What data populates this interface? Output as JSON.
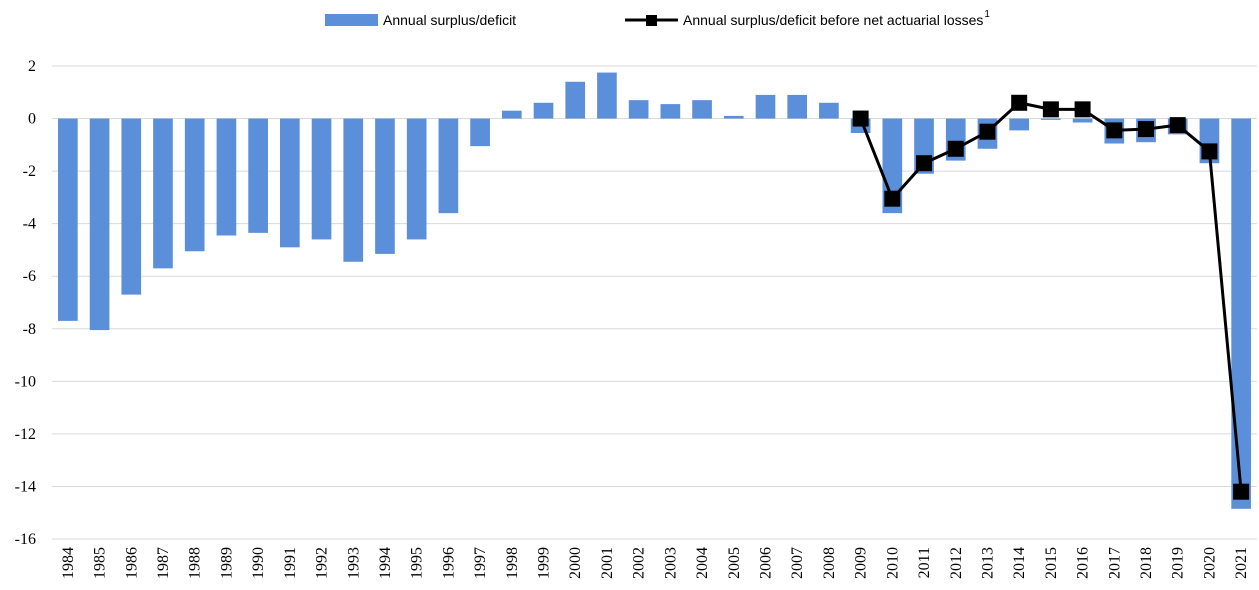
{
  "chart_data": {
    "type": "bar_line",
    "categories": [
      "1984",
      "1985",
      "1986",
      "1987",
      "1988",
      "1989",
      "1990",
      "1991",
      "1992",
      "1993",
      "1994",
      "1995",
      "1996",
      "1997",
      "1998",
      "1999",
      "2000",
      "2001",
      "2002",
      "2003",
      "2004",
      "2005",
      "2006",
      "2007",
      "2008",
      "2009",
      "2010",
      "2011",
      "2012",
      "2013",
      "2014",
      "2015",
      "2016",
      "2017",
      "2018",
      "2019",
      "2020",
      "2021"
    ],
    "series": [
      {
        "name": "Annual surplus/deficit",
        "type": "bar",
        "color": "#5b8fd9",
        "values": [
          -7.7,
          -8.05,
          -6.7,
          -5.7,
          -5.05,
          -4.45,
          -4.35,
          -4.9,
          -4.6,
          -5.45,
          -5.15,
          -4.6,
          -3.6,
          -1.05,
          0.3,
          0.6,
          1.4,
          1.75,
          0.7,
          0.55,
          0.7,
          0.1,
          0.9,
          0.9,
          0.6,
          -0.55,
          -3.6,
          -2.1,
          -1.6,
          -1.15,
          -0.45,
          -0.05,
          -0.15,
          -0.95,
          -0.9,
          -0.6,
          -1.7,
          -14.85
        ]
      },
      {
        "name": "Annual surplus/deficit before net actuarial losses",
        "name_note": "1",
        "type": "line",
        "color": "#000000",
        "values": [
          null,
          null,
          null,
          null,
          null,
          null,
          null,
          null,
          null,
          null,
          null,
          null,
          null,
          null,
          null,
          null,
          null,
          null,
          null,
          null,
          null,
          null,
          null,
          null,
          null,
          0.0,
          -3.05,
          -1.7,
          -1.15,
          -0.5,
          0.6,
          0.35,
          0.35,
          -0.45,
          -0.4,
          -0.25,
          -1.25,
          -14.2
        ]
      }
    ],
    "ylim": [
      -16,
      2
    ],
    "yticks": [
      2,
      0,
      -2,
      -4,
      -6,
      -8,
      -10,
      -12,
      -14,
      -16
    ],
    "grid": true,
    "legend": "top"
  }
}
